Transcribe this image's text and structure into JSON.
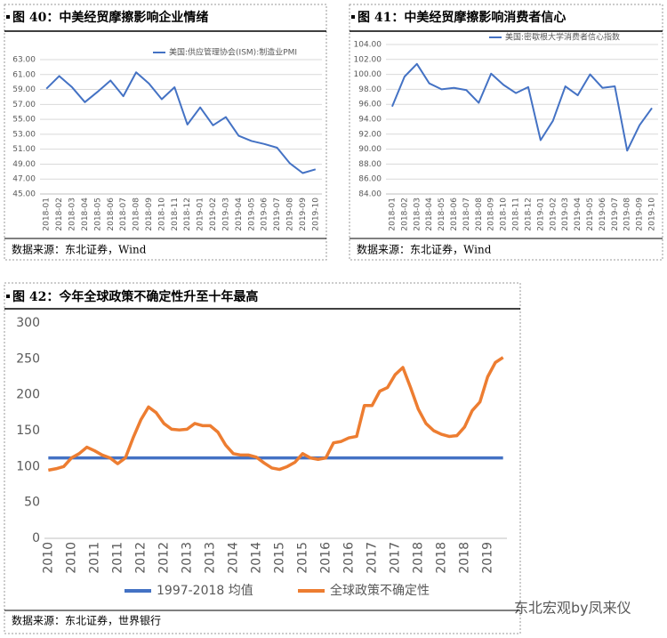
{
  "chart_data": [
    {
      "type": "line",
      "title": "图 40：中美经贸摩擦影响企业情绪",
      "source": "数据来源：东北证券，Wind",
      "categories": [
        "2018-01",
        "2018-02",
        "2018-03",
        "2018-04",
        "2018-05",
        "2018-06",
        "2018-07",
        "2018-08",
        "2018-09",
        "2018-10",
        "2018-11",
        "2018-12",
        "2019-01",
        "2019-02",
        "2019-03",
        "2019-04",
        "2019-05",
        "2019-06",
        "2019-07",
        "2019-08",
        "2019-09",
        "2019-10"
      ],
      "series": [
        {
          "name": "美国:供应管理协会(ISM):制造业PMI",
          "color": "#4472c4",
          "values": [
            59.1,
            60.8,
            59.3,
            57.3,
            58.7,
            60.2,
            58.1,
            61.3,
            59.8,
            57.7,
            59.3,
            54.3,
            56.6,
            54.2,
            55.3,
            52.8,
            52.1,
            51.7,
            51.2,
            49.1,
            47.8,
            48.3
          ]
        }
      ],
      "ylim": [
        45,
        63
      ],
      "yticks": [
        {
          "value": 45,
          "label": "45.00"
        },
        {
          "value": 47,
          "label": "47.00"
        },
        {
          "value": 49,
          "label": "49.00"
        },
        {
          "value": 51,
          "label": "51.00"
        },
        {
          "value": 53,
          "label": "53.00"
        },
        {
          "value": 55,
          "label": "55.00"
        },
        {
          "value": 57,
          "label": "57.00"
        },
        {
          "value": 59,
          "label": "59.00"
        },
        {
          "value": 61,
          "label": "61.00"
        },
        {
          "value": 63,
          "label": "63.00"
        }
      ],
      "grid": true,
      "legend": "upper right"
    },
    {
      "type": "line",
      "title": "图 41：中美经贸摩擦影响消费者信心",
      "source": "数据来源：东北证券，Wind",
      "categories": [
        "2018-01",
        "2018-02",
        "2018-03",
        "2018-04",
        "2018-05",
        "2018-06",
        "2018-07",
        "2018-08",
        "2018-09",
        "2018-10",
        "2018-11",
        "2018-12",
        "2019-01",
        "2019-02",
        "2019-03",
        "2019-04",
        "2019-05",
        "2019-06",
        "2019-07",
        "2019-08",
        "2019-09",
        "2019-10"
      ],
      "series": [
        {
          "name": "美国:密歇根大学消费者信心指数",
          "color": "#4472c4",
          "values": [
            95.7,
            99.7,
            101.4,
            98.8,
            98.0,
            98.2,
            97.9,
            96.2,
            100.1,
            98.6,
            97.5,
            98.3,
            91.2,
            93.8,
            98.4,
            97.2,
            100.0,
            98.2,
            98.4,
            89.8,
            93.2,
            95.5
          ]
        }
      ],
      "ylim": [
        84,
        104
      ],
      "yticks": [
        {
          "value": 84,
          "label": "84.00"
        },
        {
          "value": 86,
          "label": "86.00"
        },
        {
          "value": 88,
          "label": "88.00"
        },
        {
          "value": 90,
          "label": "90.00"
        },
        {
          "value": 92,
          "label": "92.00"
        },
        {
          "value": 94,
          "label": "94.00"
        },
        {
          "value": 96,
          "label": "96.00"
        },
        {
          "value": 98,
          "label": "98.00"
        },
        {
          "value": 100,
          "label": "100.00"
        },
        {
          "value": 102,
          "label": "102.00"
        },
        {
          "value": 104,
          "label": "104.00"
        }
      ],
      "grid": true,
      "legend": "upper right"
    },
    {
      "type": "line",
      "title": "图 42：今年全球政策不确定性升至十年最高",
      "source": "数据来源：东北证券，世界银行",
      "categories": [
        "2010",
        null,
        null,
        "2010",
        null,
        null,
        "2011",
        null,
        null,
        "2011",
        null,
        null,
        "2012",
        null,
        null,
        "2012",
        null,
        null,
        "2013",
        null,
        null,
        "2013",
        null,
        null,
        "2014",
        null,
        null,
        "2014",
        null,
        null,
        "2015",
        null,
        null,
        "2015",
        null,
        null,
        "2016",
        null,
        null,
        "2016",
        null,
        null,
        "2017",
        null,
        null,
        "2017",
        null,
        null,
        "2018",
        null,
        null,
        "2018",
        null,
        null,
        "2018",
        null,
        null,
        "2019",
        null,
        null
      ],
      "series": [
        {
          "name": "1997-2018 均值",
          "color": "#4472c4",
          "values": [
            112,
            112,
            112,
            112,
            112,
            112,
            112,
            112,
            112,
            112,
            112,
            112,
            112,
            112,
            112,
            112,
            112,
            112,
            112,
            112,
            112,
            112,
            112,
            112,
            112,
            112,
            112,
            112,
            112,
            112,
            112,
            112,
            112,
            112,
            112,
            112,
            112,
            112,
            112,
            112,
            112,
            112,
            112,
            112,
            112,
            112,
            112,
            112,
            112,
            112,
            112,
            112,
            112,
            112,
            112,
            112,
            112,
            112,
            112,
            112
          ]
        },
        {
          "name": "全球政策不确定性",
          "color": "#ed7d31",
          "values": [
            95,
            97,
            100,
            112,
            118,
            127,
            122,
            116,
            112,
            104,
            112,
            140,
            165,
            183,
            175,
            160,
            152,
            151,
            152,
            160,
            157,
            157,
            148,
            130,
            118,
            116,
            116,
            113,
            105,
            98,
            96,
            100,
            106,
            118,
            112,
            110,
            112,
            133,
            135,
            140,
            142,
            185,
            185,
            205,
            210,
            228,
            238,
            210,
            180,
            160,
            150,
            145,
            142,
            143,
            155,
            178,
            190,
            225,
            245,
            252
          ]
        }
      ],
      "ylim": [
        0,
        300
      ],
      "yticks": [
        0,
        50,
        100,
        150,
        200,
        250,
        300
      ],
      "grid": false,
      "legend": "bottom"
    }
  ],
  "watermark": "东北宏观by凤来仪"
}
